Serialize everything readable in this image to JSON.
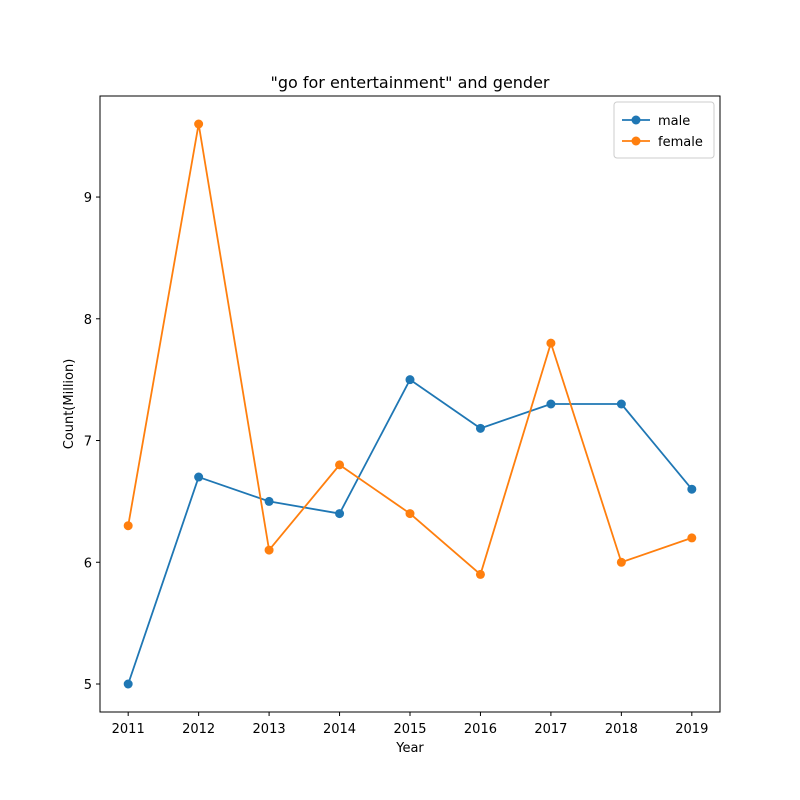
{
  "chart_data": {
    "type": "line",
    "title": "\"go for entertainment\" and gender",
    "xlabel": "Year",
    "ylabel": "Count(Million)",
    "x": [
      2011,
      2012,
      2013,
      2014,
      2015,
      2016,
      2017,
      2018,
      2019
    ],
    "series": [
      {
        "name": "male",
        "color": "#1f77b4",
        "values": [
          5.0,
          6.7,
          6.5,
          6.4,
          7.5,
          7.1,
          7.3,
          7.3,
          6.6
        ]
      },
      {
        "name": "female",
        "color": "#ff7f0e",
        "values": [
          6.3,
          9.6,
          6.1,
          6.8,
          6.4,
          5.9,
          7.8,
          6.0,
          6.2
        ]
      }
    ],
    "yticks": [
      5,
      6,
      7,
      8,
      9
    ],
    "ylim": [
      4.77,
      9.83
    ],
    "xlim": [
      2010.6,
      2019.4
    ],
    "grid": false,
    "legend_position": "top-right",
    "marker": "circle"
  }
}
